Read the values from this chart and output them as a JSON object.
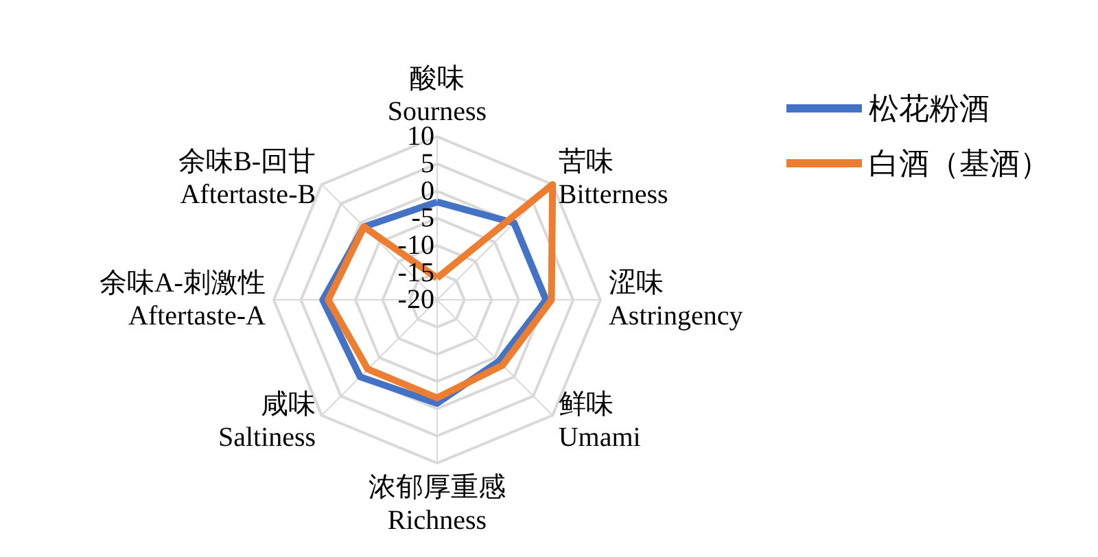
{
  "chart_data": {
    "type": "radar",
    "categories": [
      "酸味\nSourness",
      "苦味\nBitterness",
      "涩味\nAstringency",
      "鲜味\nUmami",
      "浓郁厚重感\nRichness",
      "咸味\nSaltiness",
      "余味A-刺激性\nAftertaste-A",
      "余味B-回甘\nAftertaste-B"
    ],
    "series": [
      {
        "name": "松花粉酒",
        "color": "#4472c4",
        "values": [
          -2,
          0,
          0,
          -4,
          -1,
          0,
          1,
          -1
        ]
      },
      {
        "name": "白酒（基酒）",
        "color": "#ed7d31",
        "values": [
          -16,
          10,
          1,
          -3,
          -2,
          -2,
          0,
          -1
        ]
      }
    ],
    "ylim": [
      -20,
      10
    ],
    "yticks": [
      -20,
      -15,
      -10,
      -5,
      0,
      5,
      10
    ],
    "legend": "top right",
    "marker": "none",
    "line_style": "solid",
    "grid": true
  }
}
